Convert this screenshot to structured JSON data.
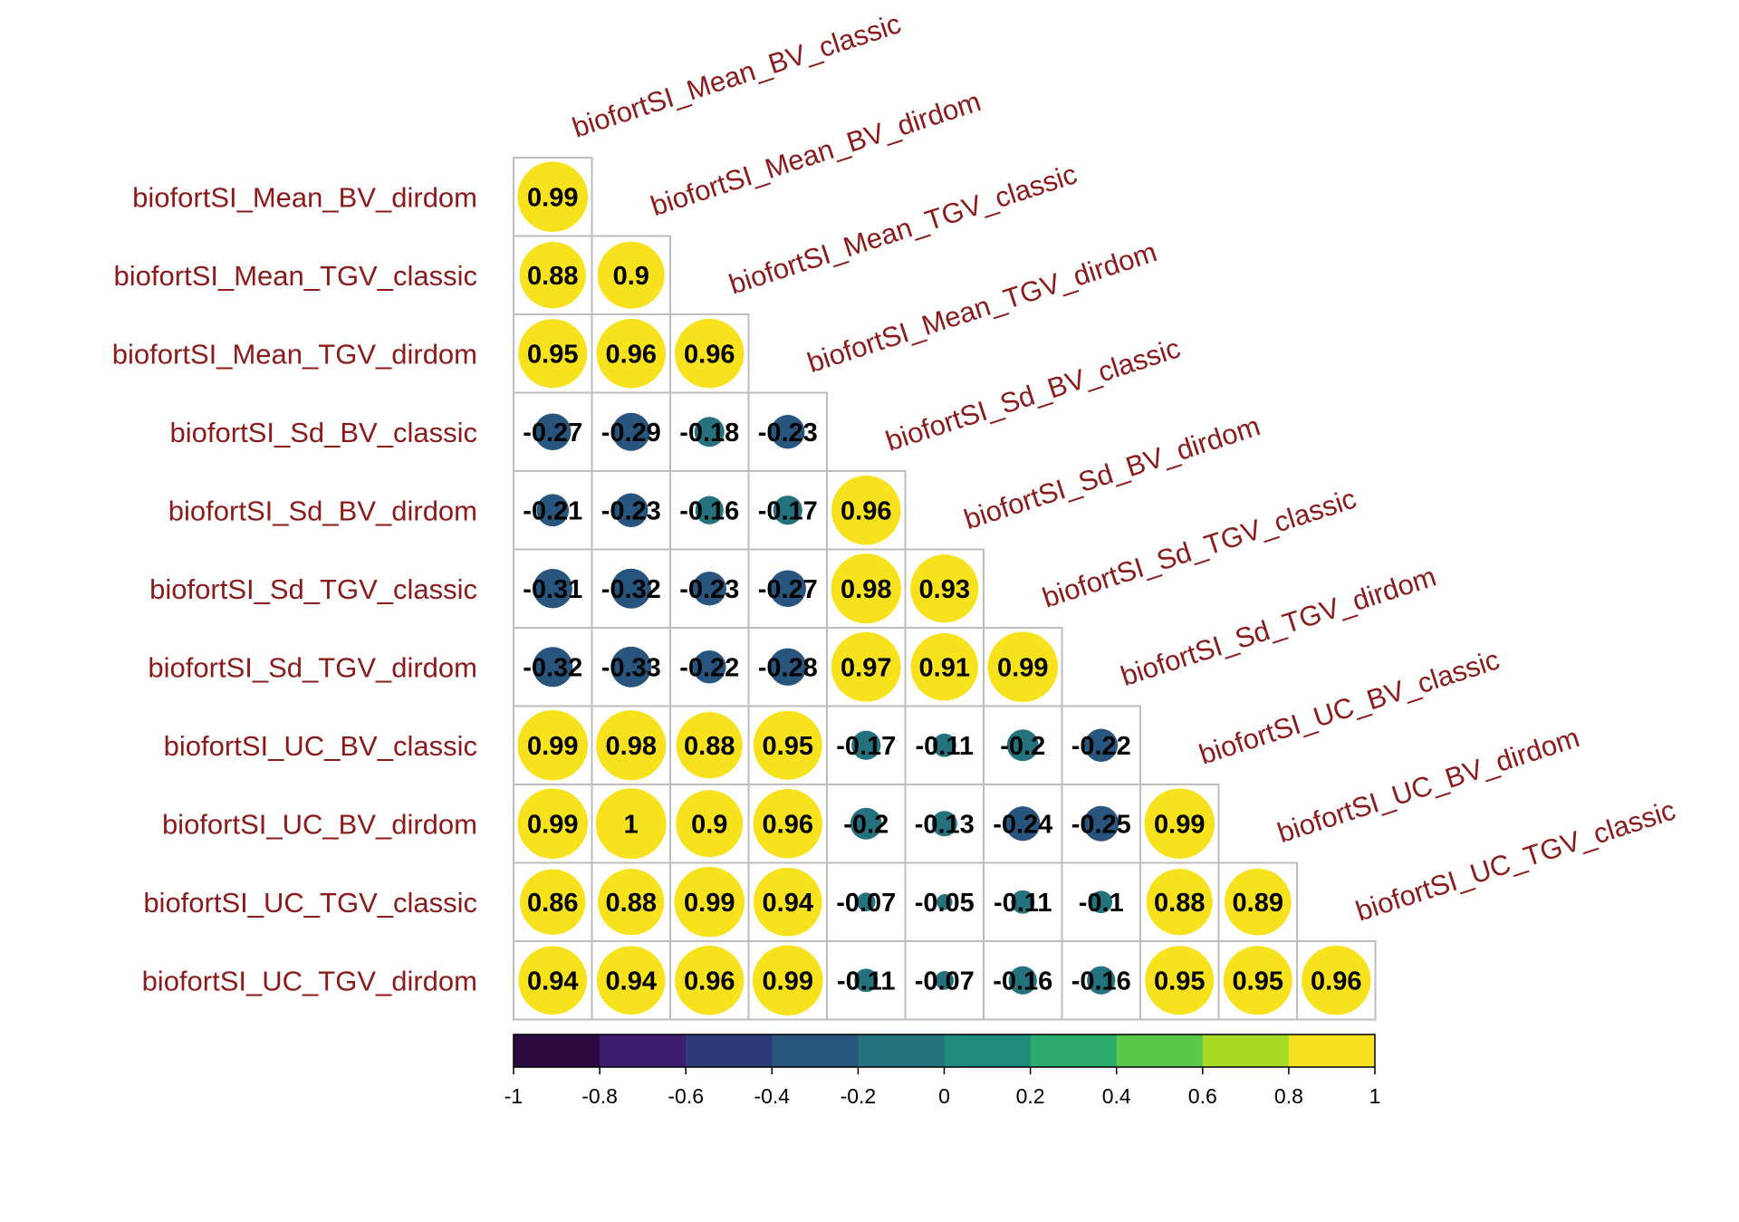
{
  "chart_data": {
    "type": "heatmap",
    "subtype": "correlation-lower-triangle-circles",
    "title": "",
    "variables": [
      "biofortSI_Mean_BV_classic",
      "biofortSI_Mean_BV_dirdom",
      "biofortSI_Mean_TGV_classic",
      "biofortSI_Mean_TGV_dirdom",
      "biofortSI_Sd_BV_classic",
      "biofortSI_Sd_BV_dirdom",
      "biofortSI_Sd_TGV_classic",
      "biofortSI_Sd_TGV_dirdom",
      "biofortSI_UC_BV_classic",
      "biofortSI_UC_BV_dirdom",
      "biofortSI_UC_TGV_classic",
      "biofortSI_UC_TGV_dirdom"
    ],
    "row_labels": [
      "biofortSI_Mean_BV_dirdom",
      "biofortSI_Mean_TGV_classic",
      "biofortSI_Mean_TGV_dirdom",
      "biofortSI_Sd_BV_classic",
      "biofortSI_Sd_BV_dirdom",
      "biofortSI_Sd_TGV_classic",
      "biofortSI_Sd_TGV_dirdom",
      "biofortSI_UC_BV_classic",
      "biofortSI_UC_BV_dirdom",
      "biofortSI_UC_TGV_classic",
      "biofortSI_UC_TGV_dirdom"
    ],
    "column_labels": [
      "biofortSI_Mean_BV_classic",
      "biofortSI_Mean_BV_dirdom",
      "biofortSI_Mean_TGV_classic",
      "biofortSI_Mean_TGV_dirdom",
      "biofortSI_Sd_BV_classic",
      "biofortSI_Sd_BV_dirdom",
      "biofortSI_Sd_TGV_classic",
      "biofortSI_Sd_TGV_dirdom",
      "biofortSI_UC_BV_classic",
      "biofortSI_UC_BV_dirdom",
      "biofortSI_UC_TGV_classic"
    ],
    "values": [
      [
        0.99
      ],
      [
        0.88,
        0.9
      ],
      [
        0.95,
        0.96,
        0.96
      ],
      [
        -0.27,
        -0.29,
        -0.18,
        -0.23
      ],
      [
        -0.21,
        -0.23,
        -0.16,
        -0.17,
        0.96
      ],
      [
        -0.31,
        -0.32,
        -0.23,
        -0.27,
        0.98,
        0.93
      ],
      [
        -0.32,
        -0.33,
        -0.22,
        -0.28,
        0.97,
        0.91,
        0.99
      ],
      [
        0.99,
        0.98,
        0.88,
        0.95,
        -0.17,
        -0.11,
        -0.2,
        -0.22
      ],
      [
        0.99,
        1,
        0.9,
        0.96,
        -0.2,
        -0.13,
        -0.24,
        -0.25,
        0.99
      ],
      [
        0.86,
        0.88,
        0.99,
        0.94,
        -0.07,
        -0.05,
        -0.11,
        -0.1,
        0.88,
        0.89
      ],
      [
        0.94,
        0.94,
        0.96,
        0.99,
        -0.11,
        -0.07,
        -0.16,
        -0.16,
        0.95,
        0.95,
        0.96
      ]
    ],
    "colorbar": {
      "range": [
        -1,
        1
      ],
      "ticks": [
        -1,
        -0.8,
        -0.6,
        -0.4,
        -0.2,
        0,
        0.2,
        0.4,
        0.6,
        0.8,
        1
      ],
      "tick_labels": [
        "-1",
        "-0.8",
        "-0.6",
        "-0.4",
        "-0.2",
        "0",
        "0.2",
        "0.4",
        "0.6",
        "0.8",
        "1"
      ],
      "colors": [
        "#2d0a40",
        "#3c1e6e",
        "#2c3a7a",
        "#27557e",
        "#23727e",
        "#1f8c7c",
        "#2ba96e",
        "#5ac94a",
        "#a7da22",
        "#f8e21d"
      ]
    },
    "label_color": "#8b1a1a",
    "grid_color": "#bdbdbd",
    "legend_position": "bottom"
  }
}
